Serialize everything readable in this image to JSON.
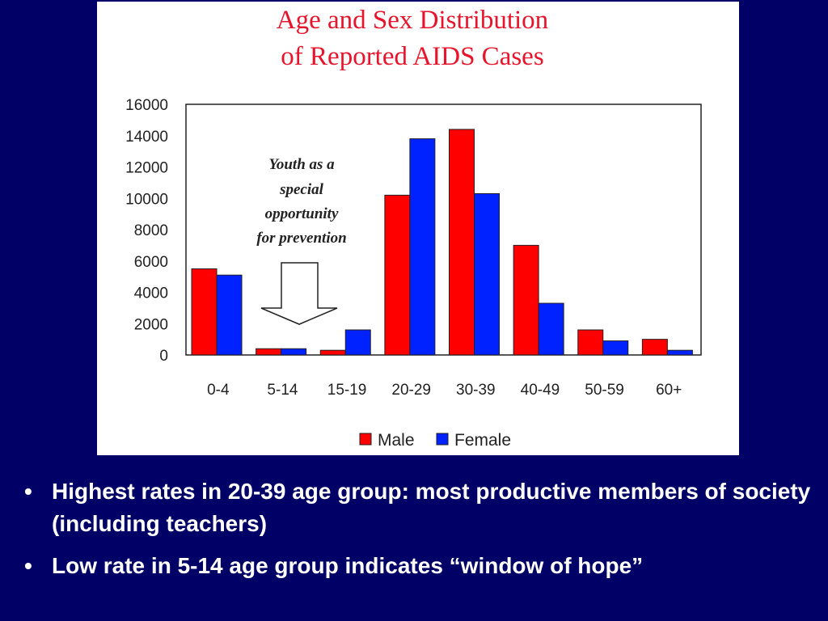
{
  "chart_data": {
    "type": "bar",
    "title": [
      "Age and Sex Distribution",
      "of Reported AIDS Cases"
    ],
    "categories": [
      "0-4",
      "5-14",
      "15-19",
      "20-29",
      "30-39",
      "40-49",
      "50-59",
      "60+"
    ],
    "series": [
      {
        "name": "Male",
        "color": "#ff0000",
        "values": [
          5500,
          400,
          300,
          10200,
          14400,
          7000,
          1600,
          1000
        ]
      },
      {
        "name": "Female",
        "color": "#0022ff",
        "values": [
          5100,
          400,
          1600,
          13800,
          10300,
          3300,
          900,
          300
        ]
      }
    ],
    "ylim": [
      0,
      16000
    ],
    "yticks": [
      "0",
      "2000",
      "4000",
      "6000",
      "8000",
      "10000",
      "12000",
      "14000",
      "16000"
    ],
    "legend_position": "bottom",
    "grid": false,
    "annotation": {
      "lines": [
        "Youth as a",
        "special",
        "opportunity",
        "for prevention"
      ],
      "arrow_icon": "down-arrow-icon"
    }
  },
  "bullets": [
    {
      "marker": "•",
      "text": "Highest rates in 20-39 age group: most productive members of society (including teachers)"
    },
    {
      "marker": "•",
      "text": "Low rate in 5-14 age group indicates “window of hope”"
    }
  ]
}
